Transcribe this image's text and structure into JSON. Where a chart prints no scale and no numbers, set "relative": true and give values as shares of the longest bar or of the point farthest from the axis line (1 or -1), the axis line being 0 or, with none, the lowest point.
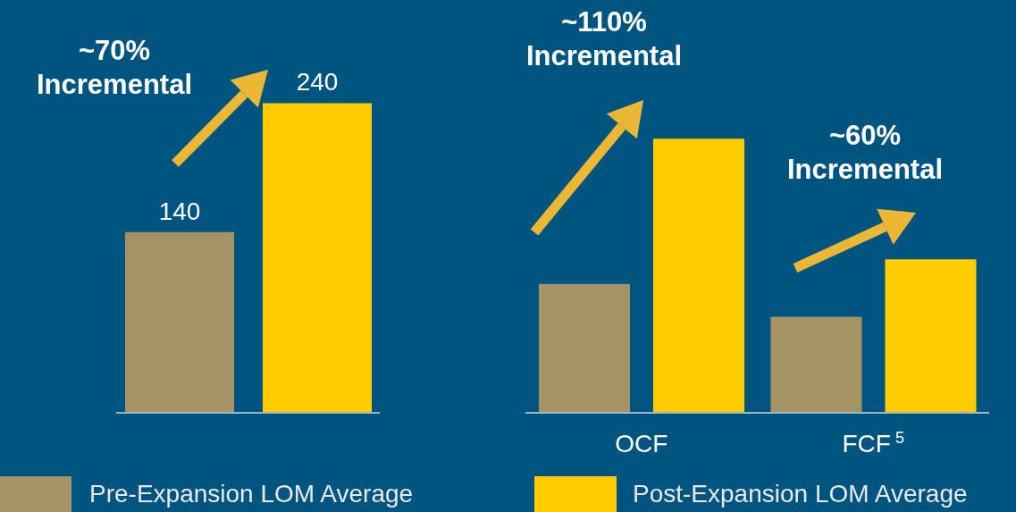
{
  "chart_data": [
    {
      "type": "bar",
      "categories": [
        null
      ],
      "series": [
        {
          "name": "Pre-Expansion LOM Average",
          "color": "#a59366",
          "values": [
            140
          ]
        },
        {
          "name": "Post-Expansion LOM Average",
          "color": "#ffcc00",
          "values": [
            240
          ]
        }
      ],
      "data_labels": true,
      "legend": "bottom",
      "annotations": [
        "~70% Incremental"
      ]
    },
    {
      "type": "bar",
      "relative": true,
      "categories": [
        "OCF",
        "FCF$^{5}$"
      ],
      "series": [
        {
          "color": "#a59366",
          "values": [
            0.47,
            0.35
          ]
        },
        {
          "color": "#ffcc00",
          "values": [
            1,
            0.56
          ]
        }
      ],
      "annotations": [
        "~110% Incremental",
        "~60% Incremental"
      ]
    }
  ]
}
